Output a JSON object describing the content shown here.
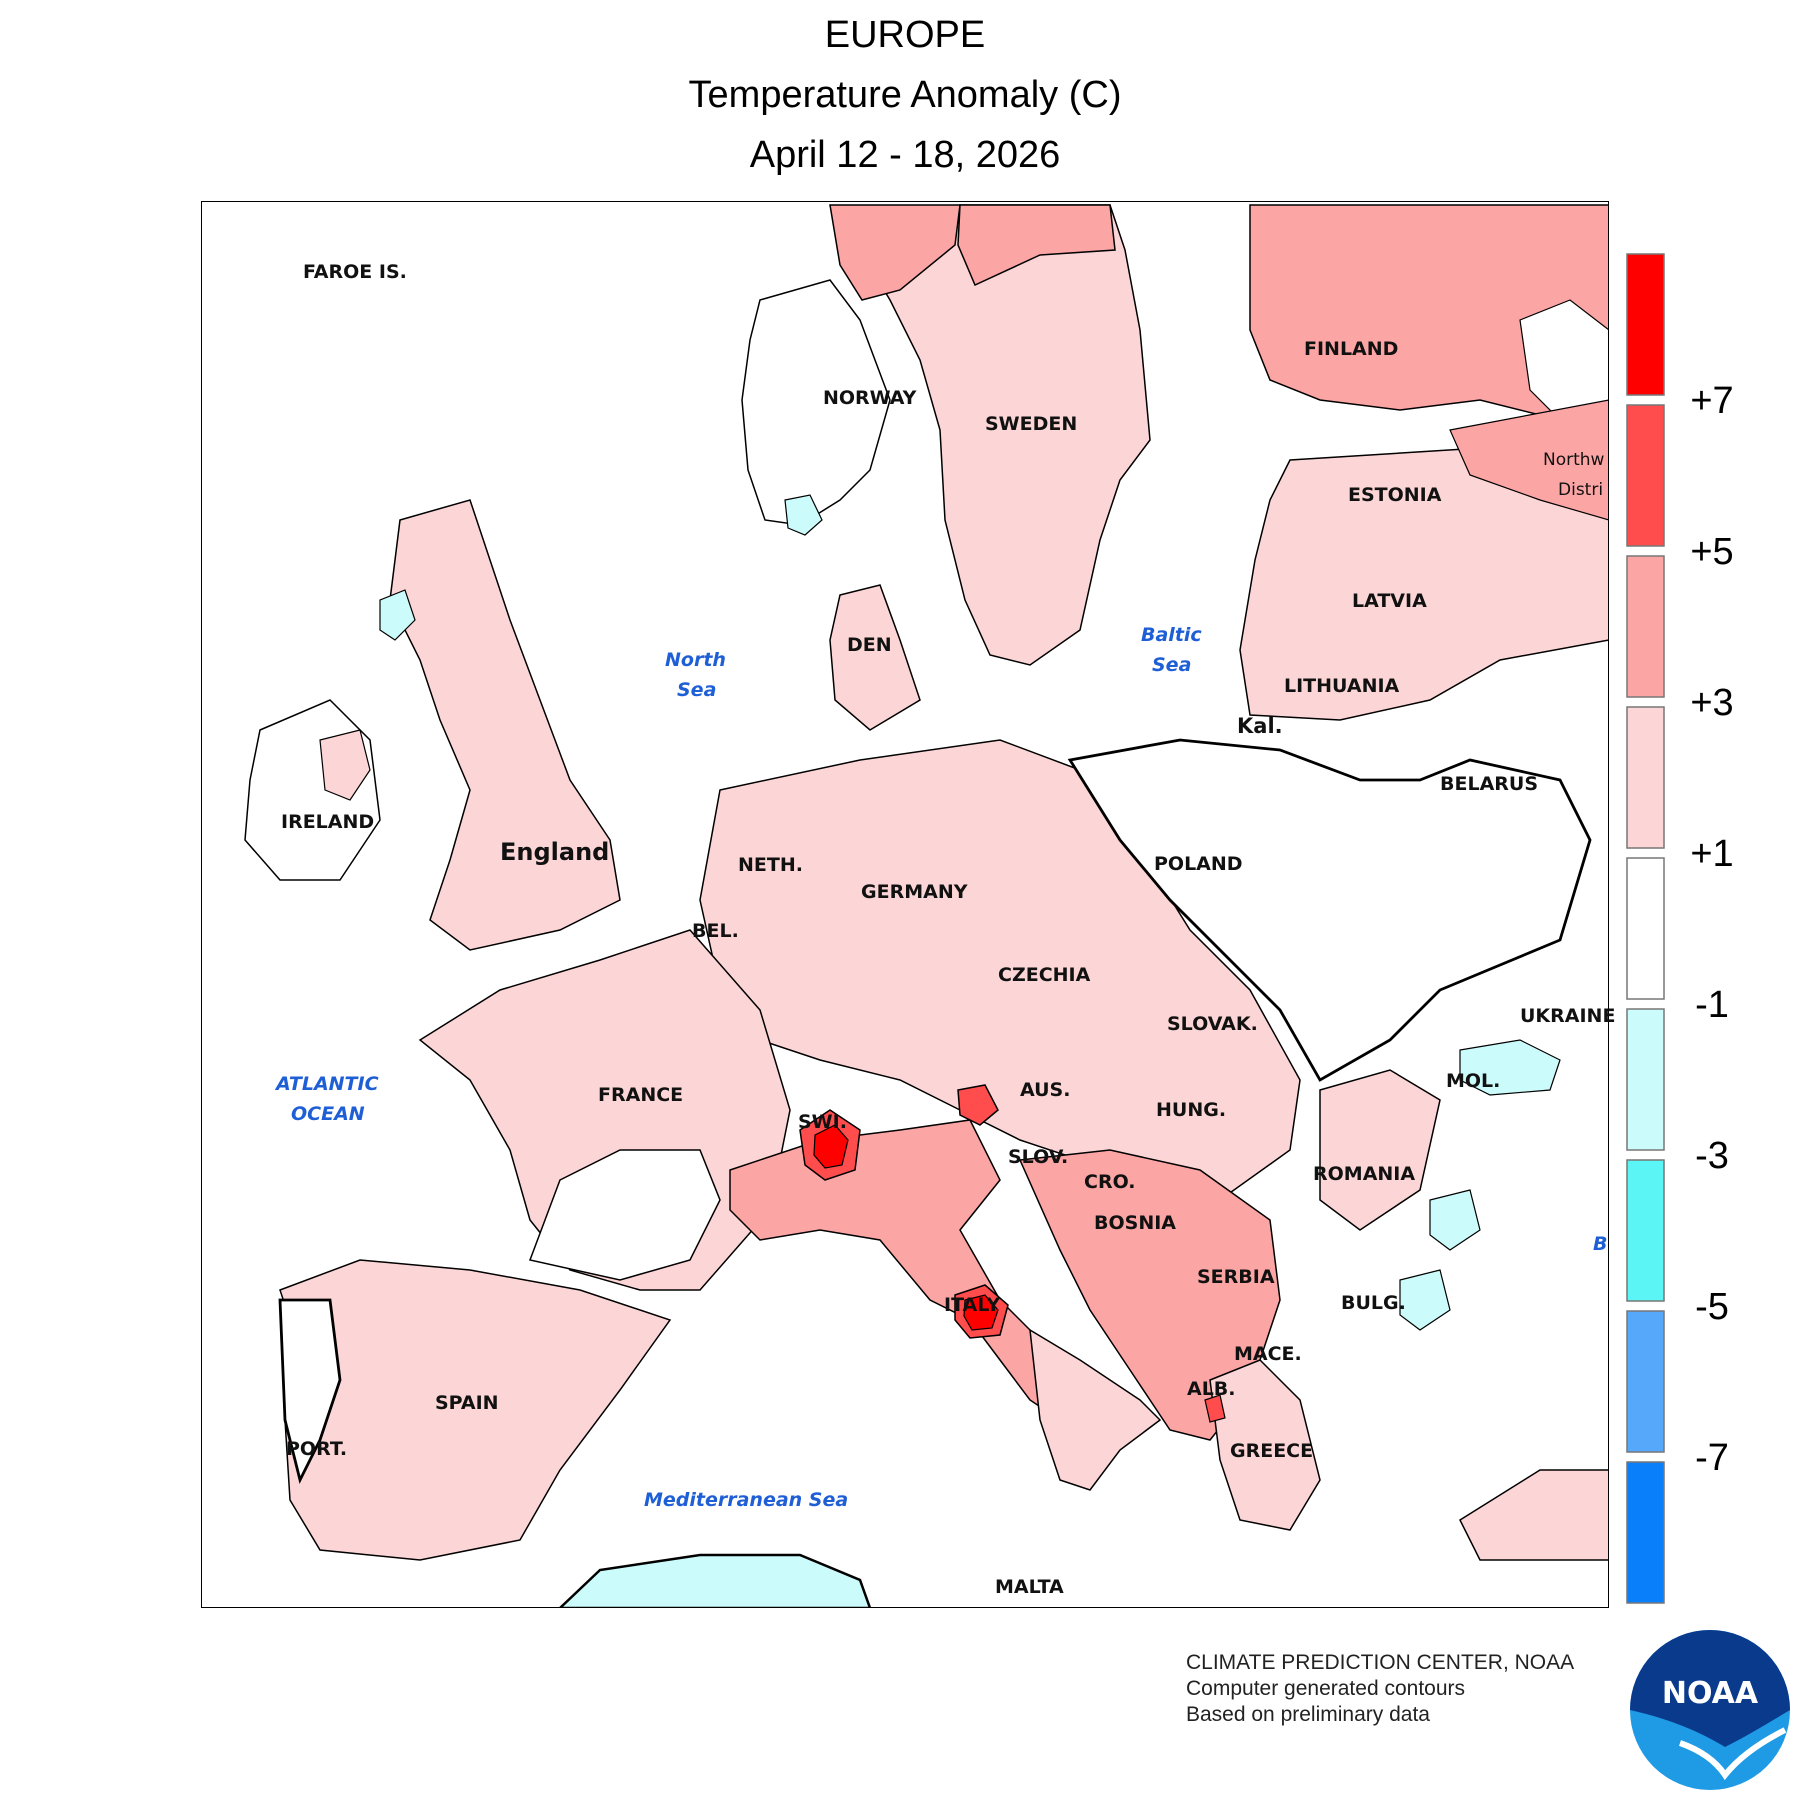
{
  "header": {
    "title": "EUROPE",
    "subtitle": "Temperature Anomaly (C)",
    "date_range": "April 12 - 18, 2026"
  },
  "map": {
    "country_labels": {
      "faroe": "FAROE IS.",
      "norway": "NORWAY",
      "sweden": "SWEDEN",
      "finland": "FINLAND",
      "estonia": "ESTONIA",
      "latvia": "LATVIA",
      "lithuania": "LITHUANIA",
      "kaliningrad": "Kal.",
      "belarus": "BELARUS",
      "ireland": "IRELAND",
      "england": "England",
      "denmark": "DEN",
      "netherlands": "NETH.",
      "belgium": "BEL.",
      "germany": "GERMANY",
      "poland": "POLAND",
      "czechia": "CZECHIA",
      "slovakia": "SLOVAK.",
      "ukraine": "UKRAINE",
      "moldova": "MOL.",
      "austria": "AUS.",
      "hungary": "HUNG.",
      "romania": "ROMANIA",
      "switzerland": "SWI.",
      "slovenia": "SLOV.",
      "croatia": "CRO.",
      "bosnia": "BOSNIA",
      "serbia": "SERBIA",
      "bulgaria": "BULG.",
      "macedonia": "MACE.",
      "albania": "ALB.",
      "greece": "GREECE",
      "france": "FRANCE",
      "spain": "SPAIN",
      "portugal": "PORT.",
      "italy": "ITALY",
      "malta": "MALTA",
      "northwest_district_1": "Northw",
      "northwest_district_2": "Distri"
    },
    "sea_labels": {
      "north_sea_1": "North",
      "north_sea_2": "Sea",
      "baltic_sea_1": "Baltic",
      "baltic_sea_2": "Sea",
      "atlantic_1": "ATLANTIC",
      "atlantic_2": "OCEAN",
      "mediterranean": "Mediterranean Sea",
      "black_sea_fragment": "B"
    },
    "anomaly_colors": {
      "above_7": "#ff0000",
      "5_to_7": "#ff4d4d",
      "3_to_5": "#fca5a5",
      "1_to_3": "#fcd6d6",
      "neutral": "#ffffff",
      "minus1_to_minus3": "#ccfbfb",
      "minus3_to_minus5": "#5cf5f5",
      "minus5_to_minus7": "#55a8fa",
      "below_minus7": "#0a7ffa"
    }
  },
  "legend": {
    "colors": [
      "#ff0000",
      "#ff4d4d",
      "#fca5a5",
      "#fcd6d6",
      "#ffffff",
      "#ccfbfb",
      "#5cf5f5",
      "#55a8fa",
      "#0a7ffa"
    ],
    "labels": [
      "+7",
      "+5",
      "+3",
      "+1",
      "-1",
      "-3",
      "-5",
      "-7"
    ]
  },
  "credits": {
    "line1": "CLIMATE PREDICTION CENTER, NOAA",
    "line2": "Computer generated contours",
    "line3": "Based on preliminary data"
  },
  "logo": {
    "text": "NOAA",
    "colors": {
      "top": "#0a3a8c",
      "bottom": "#1f9be6"
    }
  }
}
